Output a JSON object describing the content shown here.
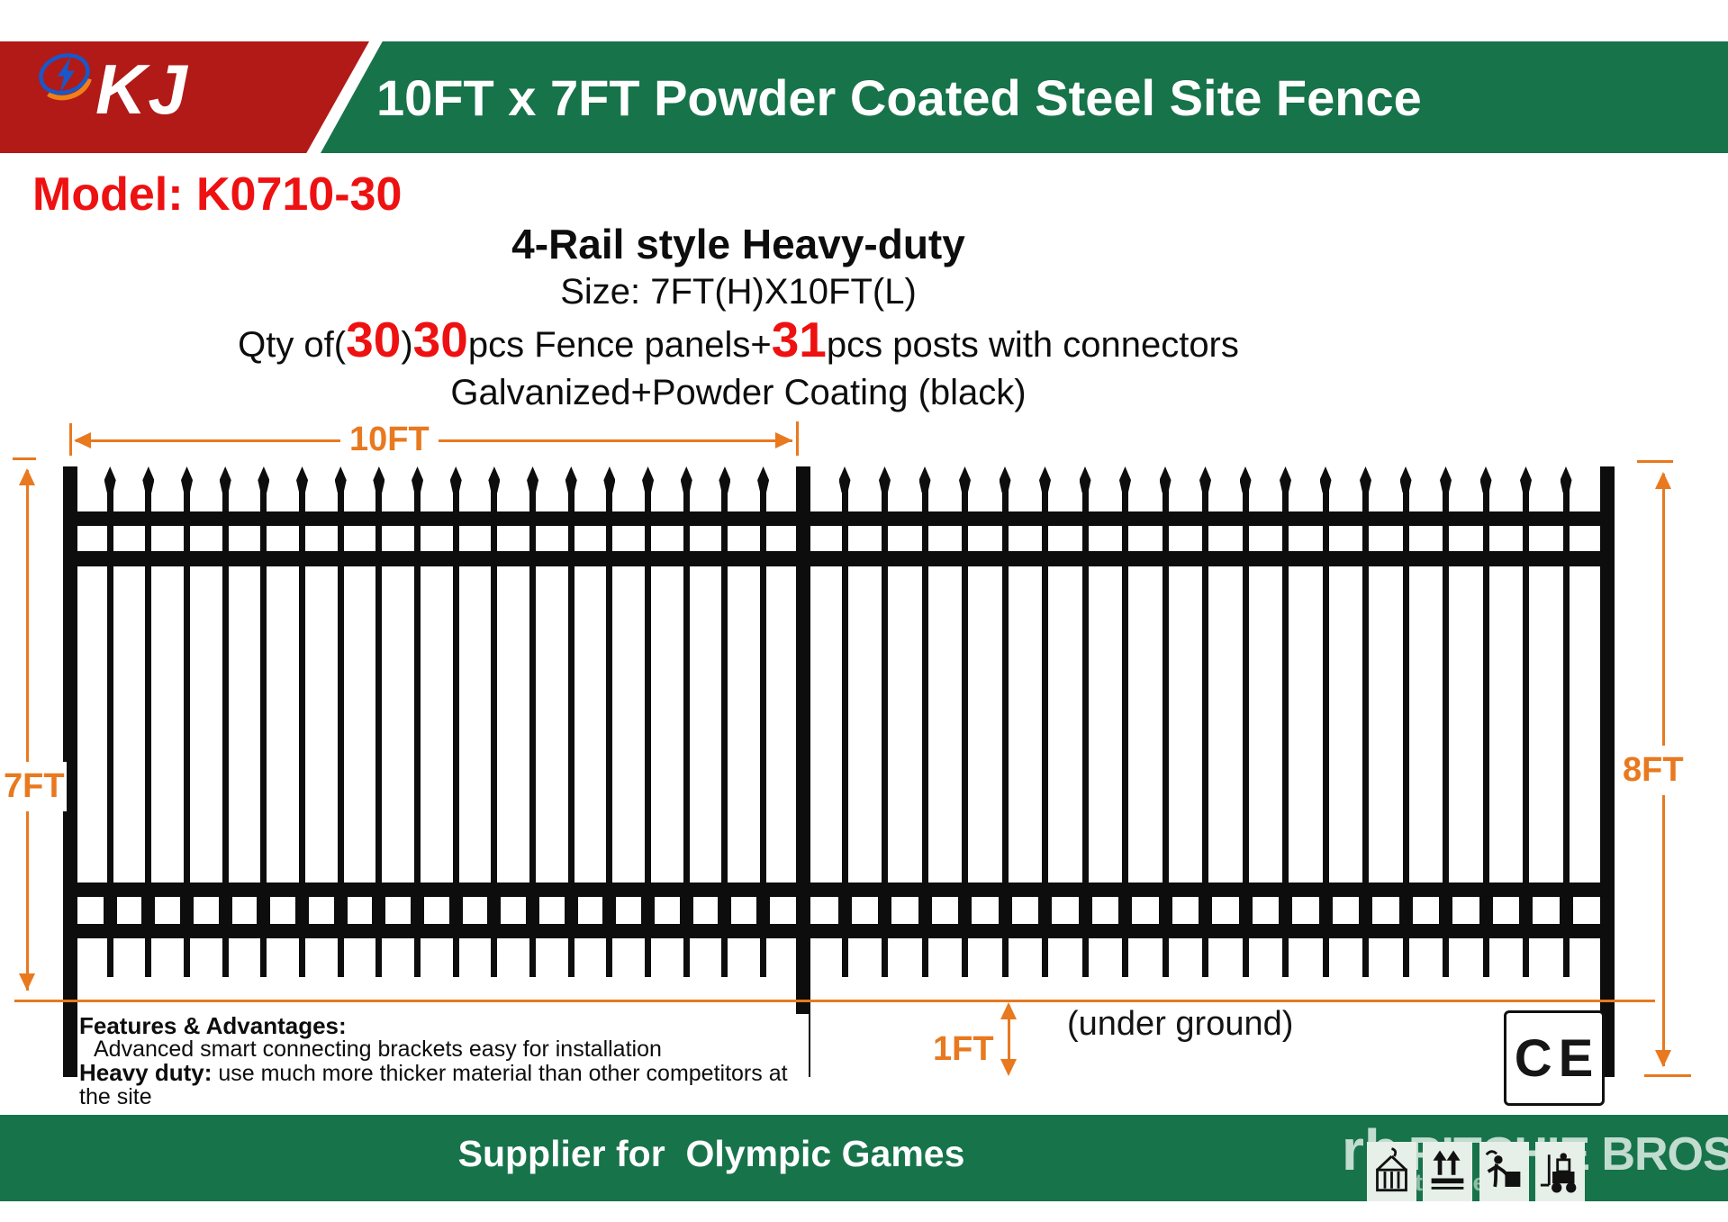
{
  "colors": {
    "banner_red": "#b11a17",
    "banner_green": "#17734a",
    "accent_red": "#ee1111",
    "dim_orange": "#e8791f"
  },
  "header": {
    "logo_icon": "kj-globe-logo",
    "logo_text": "KJ",
    "title": "10FT x 7FT Powder Coated Steel Site Fence"
  },
  "model": {
    "label": "Model: K0710-30"
  },
  "specs": {
    "style_heading": "4-Rail style Heavy-duty",
    "size_line": "Size: 7FT(H)X10FT(L)",
    "qty": {
      "prefix": "Qty of(",
      "num_panels_paren": "30",
      "close_paren": ")",
      "num_panels": "30",
      "mid": "pcs Fence panels+",
      "num_posts": "31",
      "suffix": "pcs posts with connectors"
    },
    "coating_line": "Galvanized+Powder Coating (black)"
  },
  "diagram": {
    "width_label": "10FT",
    "height_left_label": "7FT",
    "height_right_label": "8FT",
    "depth_label": "1FT",
    "underground_note": "(under ground)",
    "pickets_per_panel": [
      18,
      19
    ]
  },
  "features": {
    "heading": "Features & Advantages:",
    "line1": "Advanced smart connecting brackets easy for installation",
    "line2_bold": "Heavy duty:",
    "line2_rest": " use much more thicker material than other competitors at the site"
  },
  "certification": {
    "ce": "CE"
  },
  "footer": {
    "text": "Supplier for  Olympic Games"
  },
  "watermark": {
    "logo": "rb",
    "brand": "RITCHIE BROS.",
    "sub": "Auctioneers"
  },
  "icons": [
    "container-lifting-icon",
    "keep-upright-icon",
    "falling-hazard-icon",
    "forklift-icon"
  ]
}
